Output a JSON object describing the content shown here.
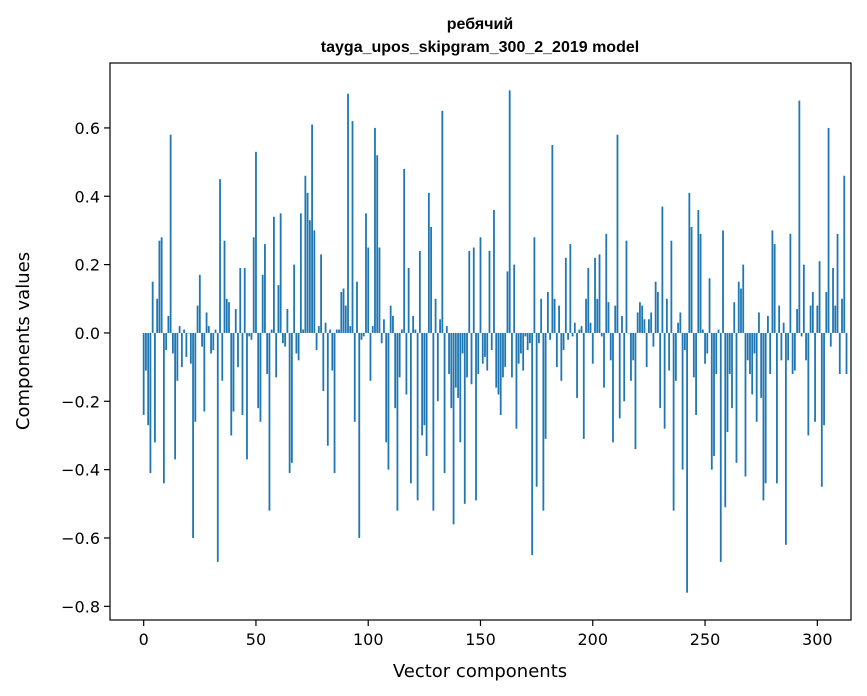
{
  "chart_data": {
    "type": "bar",
    "title": "ребячий",
    "subtitle": "tayga_upos_skipgram_300_2_2019 model",
    "xlabel": "Vector components",
    "ylabel": "Components values",
    "xlim": [
      -15,
      315
    ],
    "ylim": [
      -0.84,
      0.79
    ],
    "x_ticks": [
      0,
      50,
      100,
      150,
      200,
      250,
      300
    ],
    "x_tick_labels": [
      "0",
      "50",
      "100",
      "150",
      "200",
      "250",
      "300"
    ],
    "y_ticks": [
      -0.8,
      -0.6,
      -0.4,
      -0.2,
      0.0,
      0.2,
      0.4,
      0.6
    ],
    "y_tick_labels": [
      "−0.8",
      "−0.6",
      "−0.4",
      "−0.2",
      "0.0",
      "0.2",
      "0.4",
      "0.6"
    ],
    "bar_color": "#1f77b4",
    "grid": false,
    "values": [
      -0.24,
      -0.11,
      -0.27,
      -0.41,
      0.15,
      -0.32,
      0.1,
      0.27,
      0.28,
      -0.44,
      -0.05,
      0.05,
      0.58,
      -0.06,
      -0.37,
      -0.14,
      0.02,
      -0.1,
      0.01,
      -0.07,
      0.0,
      -0.09,
      -0.6,
      -0.26,
      0.08,
      0.17,
      -0.04,
      -0.23,
      0.06,
      0.02,
      -0.06,
      -0.05,
      0.01,
      -0.67,
      0.45,
      -0.14,
      0.27,
      0.1,
      0.09,
      -0.3,
      -0.23,
      0.07,
      -0.1,
      0.19,
      -0.24,
      0.19,
      -0.37,
      -0.01,
      -0.02,
      0.28,
      0.53,
      -0.22,
      -0.26,
      0.17,
      0.26,
      -0.12,
      -0.52,
      0.01,
      0.34,
      -0.13,
      0.14,
      0.35,
      -0.03,
      -0.04,
      0.07,
      -0.41,
      -0.38,
      0.2,
      -0.06,
      -0.08,
      0.35,
      0.01,
      0.46,
      0.41,
      0.33,
      0.61,
      0.3,
      -0.05,
      0.02,
      0.23,
      -0.17,
      0.03,
      -0.33,
      0.01,
      -0.11,
      -0.41,
      0.01,
      0.01,
      0.12,
      0.13,
      0.08,
      0.7,
      0.02,
      0.62,
      -0.26,
      0.15,
      -0.6,
      -0.02,
      -0.01,
      0.35,
      0.25,
      -0.14,
      0.02,
      0.6,
      0.52,
      0.25,
      -0.03,
      0.04,
      -0.32,
      -0.4,
      0.08,
      0.05,
      -0.22,
      -0.52,
      -0.13,
      0.01,
      0.48,
      -0.18,
      0.19,
      -0.44,
      0.05,
      0.01,
      -0.49,
      0.24,
      -0.3,
      -0.27,
      -0.36,
      0.41,
      0.31,
      -0.52,
      0.1,
      -0.2,
      0.04,
      0.65,
      -0.41,
      0.02,
      -0.12,
      -0.22,
      -0.56,
      -0.16,
      -0.19,
      -0.32,
      -0.06,
      -0.5,
      -0.13,
      0.24,
      -0.15,
      0.25,
      -0.49,
      -0.12,
      0.28,
      -0.09,
      -0.07,
      -0.11,
      0.24,
      -0.05,
      0.36,
      -0.16,
      -0.18,
      -0.24,
      -0.13,
      -0.1,
      0.18,
      0.71,
      -0.13,
      0.2,
      -0.28,
      -0.09,
      -0.06,
      -0.11,
      -0.01,
      -0.05,
      -0.03,
      -0.65,
      0.28,
      -0.45,
      -0.03,
      0.1,
      -0.52,
      -0.31,
      0.12,
      -0.02,
      0.55,
      0.1,
      -0.1,
      0.08,
      -0.14,
      -0.05,
      0.22,
      -0.02,
      0.26,
      -0.01,
      0.03,
      -0.19,
      0.01,
      0.02,
      -0.31,
      0.1,
      0.19,
      0.03,
      -0.09,
      0.22,
      0.1,
      0.23,
      -0.01,
      -0.16,
      0.29,
      0.09,
      -0.08,
      -0.32,
      0.08,
      0.58,
      -0.25,
      0.05,
      -0.2,
      0.27,
      0.0,
      -0.14,
      -0.08,
      -0.34,
      0.06,
      0.09,
      0.08,
      0.04,
      -0.1,
      0.04,
      0.06,
      -0.04,
      0.15,
      0.12,
      -0.22,
      0.37,
      -0.28,
      0.1,
      -0.11,
      0.27,
      -0.52,
      -0.14,
      0.03,
      0.06,
      -0.4,
      -0.05,
      -0.76,
      0.41,
      0.31,
      -0.13,
      -0.24,
      0.36,
      0.29,
      0.01,
      -0.09,
      -0.06,
      0.16,
      -0.4,
      -0.36,
      -0.12,
      0.01,
      -0.67,
      0.3,
      -0.51,
      -0.29,
      -0.12,
      -0.22,
      0.09,
      -0.38,
      0.15,
      0.13,
      0.2,
      -0.42,
      -0.08,
      -0.12,
      -0.18,
      -0.06,
      -0.26,
      0.06,
      -0.19,
      -0.49,
      -0.44,
      0.05,
      -0.12,
      0.3,
      0.26,
      -0.44,
      0.08,
      -0.08,
      0.03,
      -0.62,
      -0.08,
      0.29,
      -0.12,
      -0.11,
      0.07,
      0.68,
      -0.01,
      0.2,
      -0.08,
      -0.3,
      0.08,
      0.12,
      -0.26,
      0.08,
      0.21,
      -0.45,
      -0.27,
      0.12,
      0.6,
      -0.04,
      0.19,
      0.08,
      0.29,
      -0.12,
      0.1,
      0.46,
      -0.12
    ]
  }
}
